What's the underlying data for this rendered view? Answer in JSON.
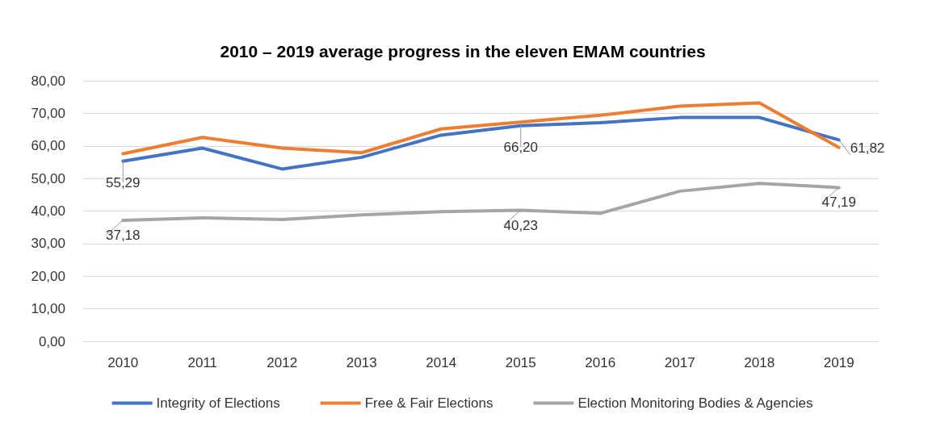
{
  "chart_data": {
    "type": "line",
    "title": "2010 – 2019 average progress in the eleven EMAM countries",
    "categories": [
      "2010",
      "2011",
      "2012",
      "2013",
      "2014",
      "2015",
      "2016",
      "2017",
      "2018",
      "2019"
    ],
    "series": [
      {
        "name": "Integrity of Elections",
        "color": "#4472c4",
        "values": [
          55.29,
          59.3,
          52.9,
          56.5,
          63.3,
          66.2,
          67.1,
          68.7,
          68.7,
          61.82
        ],
        "value_labels": [
          "55,29",
          null,
          null,
          null,
          null,
          "66,20",
          null,
          null,
          null,
          "61,82"
        ]
      },
      {
        "name": "Free & Fair Elections",
        "color": "#ed7d31",
        "values": [
          57.6,
          62.6,
          59.3,
          57.9,
          65.2,
          67.3,
          69.4,
          72.2,
          73.2,
          59.5
        ]
      },
      {
        "name": "Election Monitoring Bodies & Agencies",
        "color": "#a5a5a5",
        "values": [
          37.18,
          37.9,
          37.4,
          38.8,
          39.8,
          40.23,
          39.3,
          46.1,
          48.5,
          47.19
        ],
        "value_labels": [
          "37,18",
          null,
          null,
          null,
          null,
          "40,23",
          null,
          null,
          null,
          "47,19"
        ]
      }
    ],
    "ylim": [
      0,
      80
    ],
    "yticks": [
      {
        "value": 0,
        "label": "0,00"
      },
      {
        "value": 10,
        "label": "10,00"
      },
      {
        "value": 20,
        "label": "20,00"
      },
      {
        "value": 30,
        "label": "30,00"
      },
      {
        "value": 40,
        "label": "40,00"
      },
      {
        "value": 50,
        "label": "50,00"
      },
      {
        "value": 60,
        "label": "60,00"
      },
      {
        "value": 70,
        "label": "70,00"
      },
      {
        "value": 80,
        "label": "80,00"
      }
    ],
    "grid": "y",
    "legend": "bottom",
    "marker": "none",
    "line_style": "solid"
  }
}
